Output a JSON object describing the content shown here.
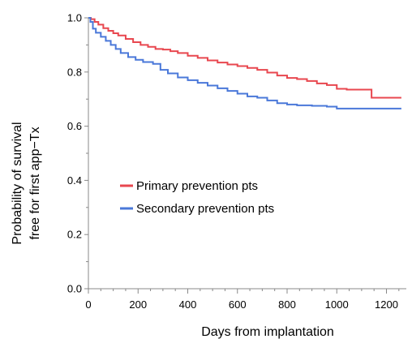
{
  "chart_data": {
    "type": "line",
    "title": "",
    "xlabel": "Days from implantation",
    "ylabel_lines": [
      "Probability of survival",
      "free for first app−Tx"
    ],
    "xlim": [
      0,
      1280
    ],
    "ylim": [
      0,
      1.0
    ],
    "x_ticks": [
      0,
      200,
      400,
      600,
      800,
      1000,
      1200
    ],
    "x_tick_labels": [
      "0",
      "200",
      "400",
      "600",
      "800",
      "1000",
      "1200"
    ],
    "y_ticks": [
      0,
      0.2,
      0.4,
      0.6,
      0.8,
      1.0
    ],
    "y_tick_labels": [
      "0.0",
      "0.2",
      "0.4",
      "0.6",
      "0.8",
      "1.0"
    ],
    "grid": false,
    "legend_position": "middle-left",
    "series": [
      {
        "name": "Primary prevention pts",
        "color": "#e8474f",
        "step": true,
        "points": [
          [
            0,
            1.0
          ],
          [
            10,
            0.995
          ],
          [
            25,
            0.985
          ],
          [
            40,
            0.975
          ],
          [
            60,
            0.962
          ],
          [
            80,
            0.952
          ],
          [
            100,
            0.943
          ],
          [
            120,
            0.935
          ],
          [
            150,
            0.922
          ],
          [
            180,
            0.91
          ],
          [
            210,
            0.9
          ],
          [
            240,
            0.893
          ],
          [
            270,
            0.885
          ],
          [
            300,
            0.883
          ],
          [
            330,
            0.877
          ],
          [
            360,
            0.87
          ],
          [
            400,
            0.86
          ],
          [
            440,
            0.852
          ],
          [
            480,
            0.843
          ],
          [
            520,
            0.835
          ],
          [
            560,
            0.828
          ],
          [
            600,
            0.822
          ],
          [
            640,
            0.815
          ],
          [
            680,
            0.808
          ],
          [
            720,
            0.798
          ],
          [
            760,
            0.787
          ],
          [
            800,
            0.778
          ],
          [
            840,
            0.774
          ],
          [
            880,
            0.767
          ],
          [
            920,
            0.758
          ],
          [
            960,
            0.752
          ],
          [
            1000,
            0.738
          ],
          [
            1040,
            0.735
          ],
          [
            1100,
            0.735
          ],
          [
            1140,
            0.705
          ],
          [
            1260,
            0.705
          ]
        ]
      },
      {
        "name": "Secondary prevention pts",
        "color": "#4a78d9",
        "step": true,
        "points": [
          [
            0,
            1.0
          ],
          [
            8,
            0.985
          ],
          [
            18,
            0.96
          ],
          [
            30,
            0.945
          ],
          [
            50,
            0.93
          ],
          [
            70,
            0.915
          ],
          [
            90,
            0.9
          ],
          [
            110,
            0.885
          ],
          [
            130,
            0.87
          ],
          [
            160,
            0.855
          ],
          [
            190,
            0.845
          ],
          [
            220,
            0.837
          ],
          [
            260,
            0.83
          ],
          [
            290,
            0.808
          ],
          [
            320,
            0.795
          ],
          [
            360,
            0.78
          ],
          [
            400,
            0.77
          ],
          [
            440,
            0.76
          ],
          [
            480,
            0.75
          ],
          [
            520,
            0.74
          ],
          [
            560,
            0.73
          ],
          [
            600,
            0.72
          ],
          [
            640,
            0.71
          ],
          [
            680,
            0.705
          ],
          [
            720,
            0.695
          ],
          [
            760,
            0.685
          ],
          [
            800,
            0.68
          ],
          [
            840,
            0.677
          ],
          [
            900,
            0.675
          ],
          [
            960,
            0.672
          ],
          [
            1000,
            0.665
          ],
          [
            1260,
            0.665
          ]
        ]
      }
    ]
  }
}
